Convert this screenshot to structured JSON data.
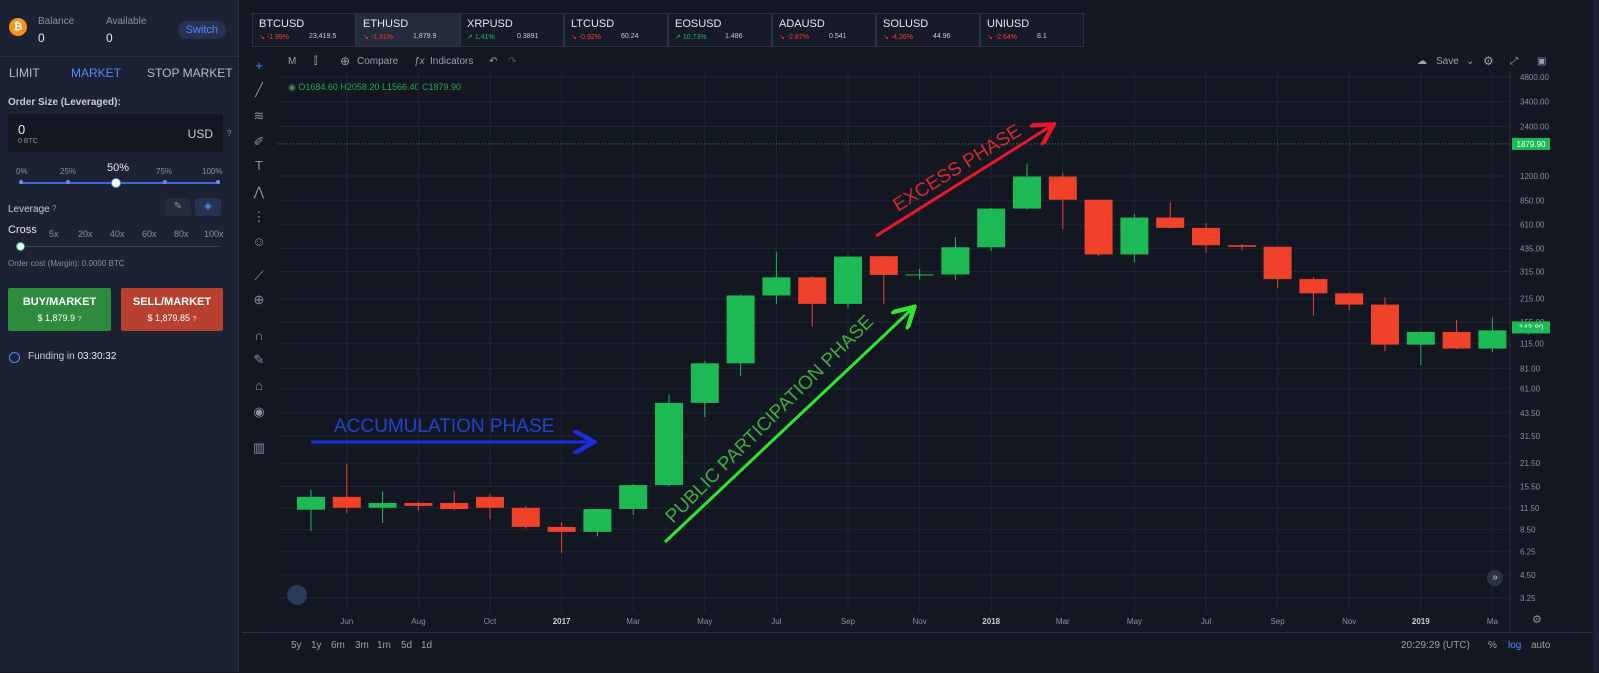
{
  "sidebar": {
    "balance_label": "Balance",
    "balance_value": "0",
    "available_label": "Available",
    "available_value": "0",
    "switch_label": "Switch",
    "order_tabs": [
      "LIMIT",
      "MARKET",
      "STOP MARKET"
    ],
    "order_size_label": "Order Size (Leveraged):",
    "order_size_value": "0",
    "order_size_btc": "0 BTC",
    "order_size_currency": "USD",
    "help_glyph": "?",
    "slider_ticks": [
      "0%",
      "25%",
      "50%",
      "75%",
      "100%"
    ],
    "slider_value_percent": 50,
    "leverage_label": "Leverage",
    "leverage_mode": "Cross",
    "leverage_options": [
      "5x",
      "20x",
      "40x",
      "60x",
      "80x",
      "100x"
    ],
    "order_cost": "Order cost (Margin): 0.0000 BTC",
    "buy_label": "BUY/MARKET",
    "buy_price": "$ 1,879.9",
    "sell_label": "SELL/MARKET",
    "sell_price": "$ 1,879.85",
    "funding_label": "Funding in",
    "funding_value": "03:30:32"
  },
  "tickers": [
    {
      "symbol": "BTCUSD",
      "change": "-1.99%",
      "price": "23,419.5",
      "up": false
    },
    {
      "symbol": "ETHUSD",
      "change": "-1.31%",
      "price": "1,879.9",
      "up": false
    },
    {
      "symbol": "XRPUSD",
      "change": "1.41%",
      "price": "0.3891",
      "up": true
    },
    {
      "symbol": "LTCUSD",
      "change": "-0.92%",
      "price": "60.24",
      "up": false
    },
    {
      "symbol": "EOSUSD",
      "change": "10.73%",
      "price": "1.486",
      "up": true
    },
    {
      "symbol": "ADAUSD",
      "change": "-2.87%",
      "price": "0.541",
      "up": false
    },
    {
      "symbol": "SOLUSD",
      "change": "-4.26%",
      "price": "44.96",
      "up": false
    },
    {
      "symbol": "UNIUSD",
      "change": "-2.64%",
      "price": "8.1",
      "up": false
    }
  ],
  "toolbar": {
    "interval": "M",
    "compare": "Compare",
    "indicators": "Indicators",
    "save": "Save"
  },
  "ohlc": "O1684.60  H2058.20  L1566.40  C1879.90",
  "annotations": {
    "accumulation": "ACCUMULATION PHASE",
    "public": "PUBLIC PARTICIPATION PHASE",
    "excess": "EXCESS PHASE"
  },
  "bottom": {
    "ranges": [
      "5y",
      "1y",
      "6m",
      "3m",
      "1m",
      "5d",
      "1d"
    ],
    "time": "20:29:29 (UTC)",
    "pct": "%",
    "log": "log",
    "auto": "auto"
  },
  "colors": {
    "up": "#1db954",
    "down": "#f0412a",
    "accent": "#4f8cff"
  },
  "chart_data": {
    "type": "candlestick",
    "x_tick_labels": [
      "Jun",
      "Aug",
      "Oct",
      "2017",
      "Mar",
      "May",
      "Jul",
      "Sep",
      "Nov",
      "2018",
      "Mar",
      "May",
      "Jul",
      "Sep",
      "Nov",
      "2019",
      "Ma"
    ],
    "y_tick_labels": [
      "4800.00",
      "3400.00",
      "2400.00",
      "1200.00",
      "850.00",
      "610.00",
      "435.00",
      "315.00",
      "215.00",
      "155.00",
      "115.00",
      "81.00",
      "61.00",
      "43.50",
      "31.50",
      "21.50",
      "15.50",
      "11.50",
      "8.50",
      "6.25",
      "4.50",
      "3.25"
    ],
    "price_tags": [
      "1879.90",
      "143.80"
    ],
    "candles": [
      {
        "o": 11.2,
        "h": 14.8,
        "l": 8.3,
        "c": 13.4
      },
      {
        "o": 13.4,
        "h": 21.3,
        "l": 10.7,
        "c": 11.5
      },
      {
        "o": 11.5,
        "h": 14.5,
        "l": 9.3,
        "c": 12.3
      },
      {
        "o": 12.3,
        "h": 12.5,
        "l": 11.0,
        "c": 11.8
      },
      {
        "o": 12.3,
        "h": 14.5,
        "l": 11.1,
        "c": 11.3
      },
      {
        "o": 13.4,
        "h": 13.9,
        "l": 9.8,
        "c": 11.5
      },
      {
        "o": 11.5,
        "h": 11.8,
        "l": 8.6,
        "c": 8.8
      },
      {
        "o": 8.8,
        "h": 9.4,
        "l": 6.1,
        "c": 8.2
      },
      {
        "o": 8.2,
        "h": 11.3,
        "l": 7.7,
        "c": 11.3
      },
      {
        "o": 11.3,
        "h": 16.0,
        "l": 10.4,
        "c": 15.8
      },
      {
        "o": 15.8,
        "h": 56.0,
        "l": 15.6,
        "c": 50.0
      },
      {
        "o": 50.0,
        "h": 90.0,
        "l": 41.0,
        "c": 87.0
      },
      {
        "o": 87.0,
        "h": 228.0,
        "l": 73.0,
        "c": 225.0
      },
      {
        "o": 225.0,
        "h": 415.0,
        "l": 200.0,
        "c": 290.0
      },
      {
        "o": 290.0,
        "h": 295.0,
        "l": 146.0,
        "c": 200.0
      },
      {
        "o": 200.0,
        "h": 395.0,
        "l": 190.0,
        "c": 388.0
      },
      {
        "o": 390.0,
        "h": 392.0,
        "l": 200.0,
        "c": 300.0
      },
      {
        "o": 302.0,
        "h": 327.0,
        "l": 282.0,
        "c": 302.0
      },
      {
        "o": 302.0,
        "h": 510.0,
        "l": 280.0,
        "c": 442.0
      },
      {
        "o": 442.0,
        "h": 765.0,
        "l": 420.0,
        "c": 760.0
      },
      {
        "o": 760.0,
        "h": 1430.0,
        "l": 750.0,
        "c": 1190.0
      },
      {
        "o": 1190.0,
        "h": 1250.0,
        "l": 570.0,
        "c": 860.0
      },
      {
        "o": 860.0,
        "h": 860.0,
        "l": 390.0,
        "c": 400.0
      },
      {
        "o": 400.0,
        "h": 705.0,
        "l": 360.0,
        "c": 670.0
      },
      {
        "o": 670.0,
        "h": 830.0,
        "l": 575.0,
        "c": 580.0
      },
      {
        "o": 580.0,
        "h": 620.0,
        "l": 410.0,
        "c": 455.0
      },
      {
        "o": 455.0,
        "h": 460.0,
        "l": 425.0,
        "c": 445.0
      },
      {
        "o": 445.0,
        "h": 445.0,
        "l": 250.0,
        "c": 283.0
      },
      {
        "o": 283.0,
        "h": 290.0,
        "l": 170.0,
        "c": 232.0
      },
      {
        "o": 232.0,
        "h": 235.0,
        "l": 183.0,
        "c": 198.0
      },
      {
        "o": 198.0,
        "h": 219.0,
        "l": 103.0,
        "c": 113.0
      },
      {
        "o": 113.0,
        "h": 136.0,
        "l": 85.0,
        "c": 135.0
      },
      {
        "o": 135.0,
        "h": 160.0,
        "l": 106.0,
        "c": 107.0
      },
      {
        "o": 107.0,
        "h": 165.0,
        "l": 102.0,
        "c": 138.0
      },
      {
        "o": 138.0,
        "h": 145.0,
        "l": 130.0,
        "c": 143.8
      }
    ]
  }
}
